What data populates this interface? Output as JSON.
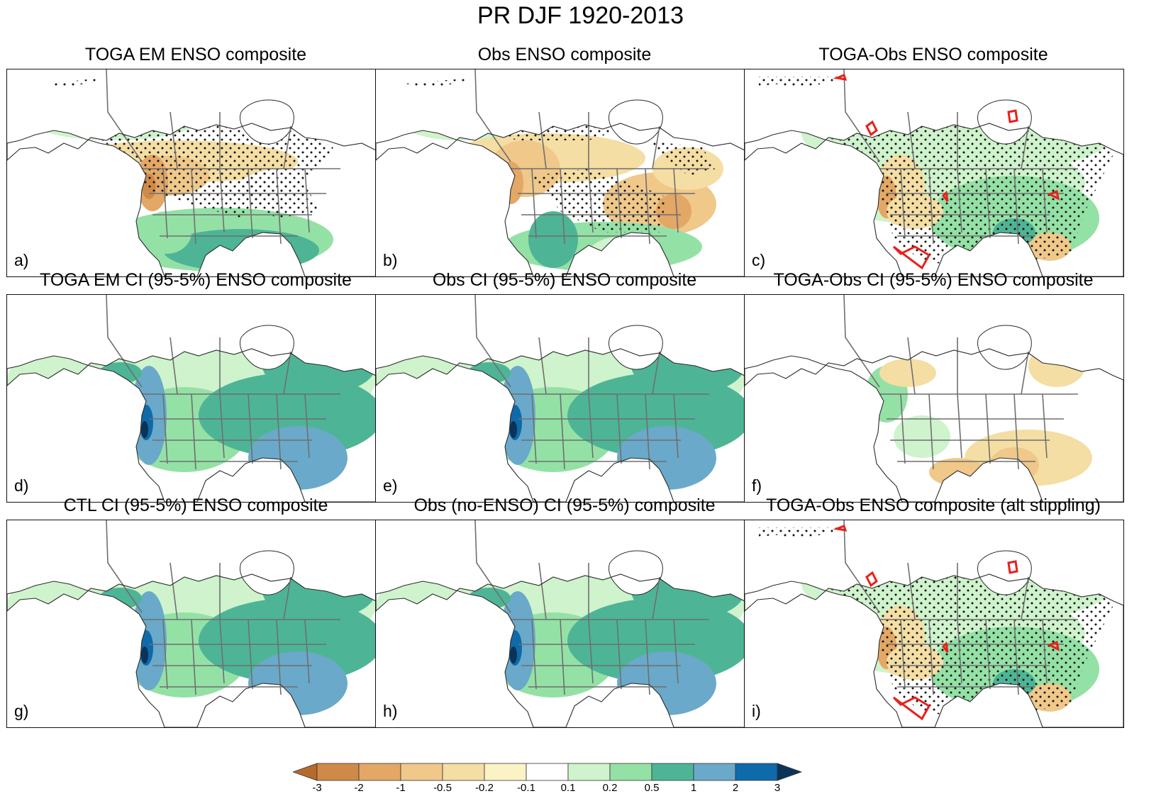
{
  "main_title": "PR DJF 1920-2013",
  "panels": [
    {
      "letter": "a)",
      "title": "TOGA EM ENSO composite",
      "kind": "composite",
      "stipple": "north",
      "contours": false
    },
    {
      "letter": "b)",
      "title": "Obs ENSO composite",
      "kind": "composite_obs",
      "stipple": "mixed",
      "contours": false
    },
    {
      "letter": "c)",
      "title": "TOGA-Obs ENSO composite",
      "kind": "diff",
      "stipple": "most",
      "contours": true
    },
    {
      "letter": "d)",
      "title": "TOGA EM CI (95-5%) ENSO composite",
      "kind": "ci",
      "stipple": "none",
      "contours": false
    },
    {
      "letter": "e)",
      "title": "Obs CI (95-5%) ENSO composite",
      "kind": "ci",
      "stipple": "none",
      "contours": false
    },
    {
      "letter": "f)",
      "title": "TOGA-Obs CI (95-5%) ENSO composite",
      "kind": "ci_diff",
      "stipple": "none",
      "contours": false
    },
    {
      "letter": "g)",
      "title": "CTL CI (95-5%) ENSO composite",
      "kind": "ci",
      "stipple": "none",
      "contours": false
    },
    {
      "letter": "h)",
      "title": "Obs (no-ENSO) CI (95-5%) composite",
      "kind": "ci",
      "stipple": "none",
      "contours": false
    },
    {
      "letter": "i)",
      "title": "TOGA-Obs ENSO composite (alt stippling)",
      "kind": "diff",
      "stipple": "most",
      "contours": true
    }
  ],
  "colorbar": {
    "levels": [
      "-3",
      "-2",
      "-1",
      "-0.5",
      "-0.2",
      "-0.1",
      "0.1",
      "0.2",
      "0.5",
      "1",
      "2",
      "3"
    ],
    "colors": [
      "#b66a2c",
      "#d08a48",
      "#e3a766",
      "#efc88a",
      "#f4dea4",
      "#fbf3c5",
      "#ffffff",
      "#cff3cc",
      "#94e1a6",
      "#4db596",
      "#6aa9c9",
      "#0f6aa9",
      "#0b3357"
    ]
  },
  "theme": {
    "ocean": "#ffffff",
    "border": "#6f6f6f",
    "coast": "#2b2b2b",
    "stipple": "#111111",
    "contour": "#e8211b"
  }
}
